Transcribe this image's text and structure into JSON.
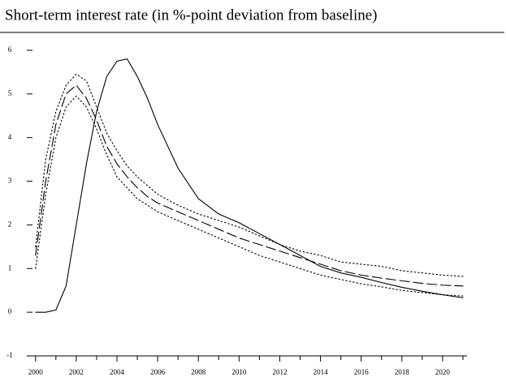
{
  "chart_data": {
    "type": "line",
    "title": "Short-term interest rate (in %-point deviation from baseline)",
    "x": [
      2000,
      2000.5,
      2001,
      2001.5,
      2002,
      2002.5,
      2003,
      2003.5,
      2004,
      2004.5,
      2005,
      2005.5,
      2006,
      2007,
      2008,
      2009,
      2010,
      2011,
      2012,
      2013,
      2014,
      2015,
      2016,
      2017,
      2018,
      2019,
      2020,
      2021
    ],
    "series": [
      {
        "color": "#000000",
        "style": "solid",
        "values": [
          0,
          0,
          0.05,
          0.6,
          2.0,
          3.4,
          4.6,
          5.4,
          5.75,
          5.8,
          5.4,
          4.9,
          4.3,
          3.3,
          2.6,
          2.25,
          2.05,
          1.8,
          1.55,
          1.3,
          1.05,
          0.9,
          0.8,
          0.68,
          0.57,
          0.48,
          0.4,
          0.33
        ]
      },
      {
        "color": "#000000",
        "style": "dashed",
        "values": [
          1.3,
          3.0,
          4.3,
          5.0,
          5.2,
          4.9,
          4.4,
          3.8,
          3.4,
          3.1,
          2.85,
          2.65,
          2.5,
          2.3,
          2.1,
          1.9,
          1.7,
          1.55,
          1.4,
          1.25,
          1.1,
          0.95,
          0.85,
          0.78,
          0.72,
          0.66,
          0.62,
          0.6
        ]
      },
      {
        "color": "#000000",
        "style": "dotted",
        "values": [
          1.5,
          3.5,
          4.6,
          5.2,
          5.45,
          5.3,
          4.7,
          4.1,
          3.7,
          3.35,
          3.1,
          2.9,
          2.7,
          2.45,
          2.25,
          2.1,
          1.95,
          1.75,
          1.55,
          1.4,
          1.3,
          1.15,
          1.1,
          1.05,
          0.95,
          0.9,
          0.85,
          0.82
        ]
      },
      {
        "color": "#000000",
        "style": "dotted",
        "values": [
          1.0,
          2.7,
          4.0,
          4.7,
          4.95,
          4.7,
          4.2,
          3.6,
          3.1,
          2.85,
          2.6,
          2.45,
          2.3,
          2.1,
          1.9,
          1.7,
          1.5,
          1.3,
          1.15,
          1.0,
          0.85,
          0.75,
          0.65,
          0.58,
          0.5,
          0.45,
          0.4,
          0.37
        ]
      }
    ],
    "xlim": [
      1999.85,
      2021.2
    ],
    "xticks": [
      2000,
      2002,
      2004,
      2006,
      2008,
      2010,
      2012,
      2014,
      2016,
      2018,
      2020
    ],
    "xminorticks": [
      2001,
      2003,
      2005,
      2007,
      2009,
      2011,
      2013,
      2015,
      2017,
      2019,
      2021
    ],
    "ylim": [
      -1,
      6
    ],
    "yticks": [
      -1,
      0,
      1,
      2,
      3,
      4,
      5,
      6
    ],
    "grid": false
  }
}
